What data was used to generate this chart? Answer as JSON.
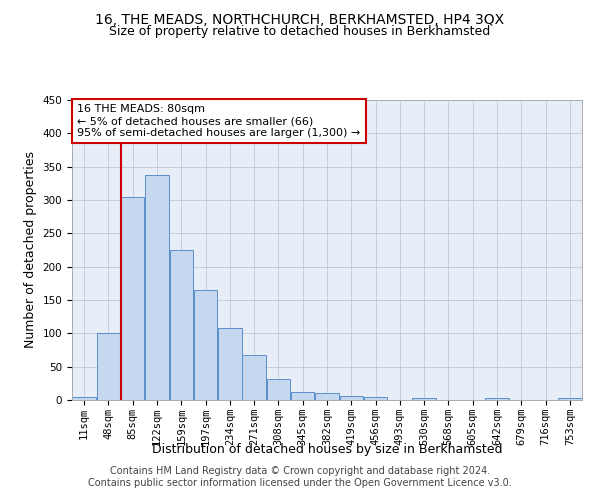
{
  "title1": "16, THE MEADS, NORTHCHURCH, BERKHAMSTED, HP4 3QX",
  "title2": "Size of property relative to detached houses in Berkhamsted",
  "xlabel": "Distribution of detached houses by size in Berkhamsted",
  "ylabel": "Number of detached properties",
  "bin_labels": [
    "11sqm",
    "48sqm",
    "85sqm",
    "122sqm",
    "159sqm",
    "197sqm",
    "234sqm",
    "271sqm",
    "308sqm",
    "345sqm",
    "382sqm",
    "419sqm",
    "456sqm",
    "493sqm",
    "530sqm",
    "568sqm",
    "605sqm",
    "642sqm",
    "679sqm",
    "716sqm",
    "753sqm"
  ],
  "bar_heights": [
    5,
    100,
    305,
    337,
    225,
    165,
    108,
    68,
    32,
    12,
    11,
    6,
    5,
    0,
    3,
    0,
    0,
    3,
    0,
    0,
    3
  ],
  "bar_color": "#c5d8f0",
  "bar_edge_color": "#5b8fc9",
  "vline_x_index": 2,
  "vline_color": "#cc0000",
  "annotation_text": "16 THE MEADS: 80sqm\n← 5% of detached houses are smaller (66)\n95% of semi-detached houses are larger (1,300) →",
  "annotation_box_color": "#cc0000",
  "ylim": [
    0,
    450
  ],
  "yticks": [
    0,
    50,
    100,
    150,
    200,
    250,
    300,
    350,
    400,
    450
  ],
  "footer1": "Contains HM Land Registry data © Crown copyright and database right 2024.",
  "footer2": "Contains public sector information licensed under the Open Government Licence v3.0.",
  "bg_color": "#ffffff",
  "plot_bg_color": "#e8eef7",
  "grid_color": "#c0c8d8",
  "title1_fontsize": 10,
  "title2_fontsize": 9,
  "axis_label_fontsize": 9,
  "tick_fontsize": 7.5,
  "footer_fontsize": 7,
  "annotation_fontsize": 8
}
